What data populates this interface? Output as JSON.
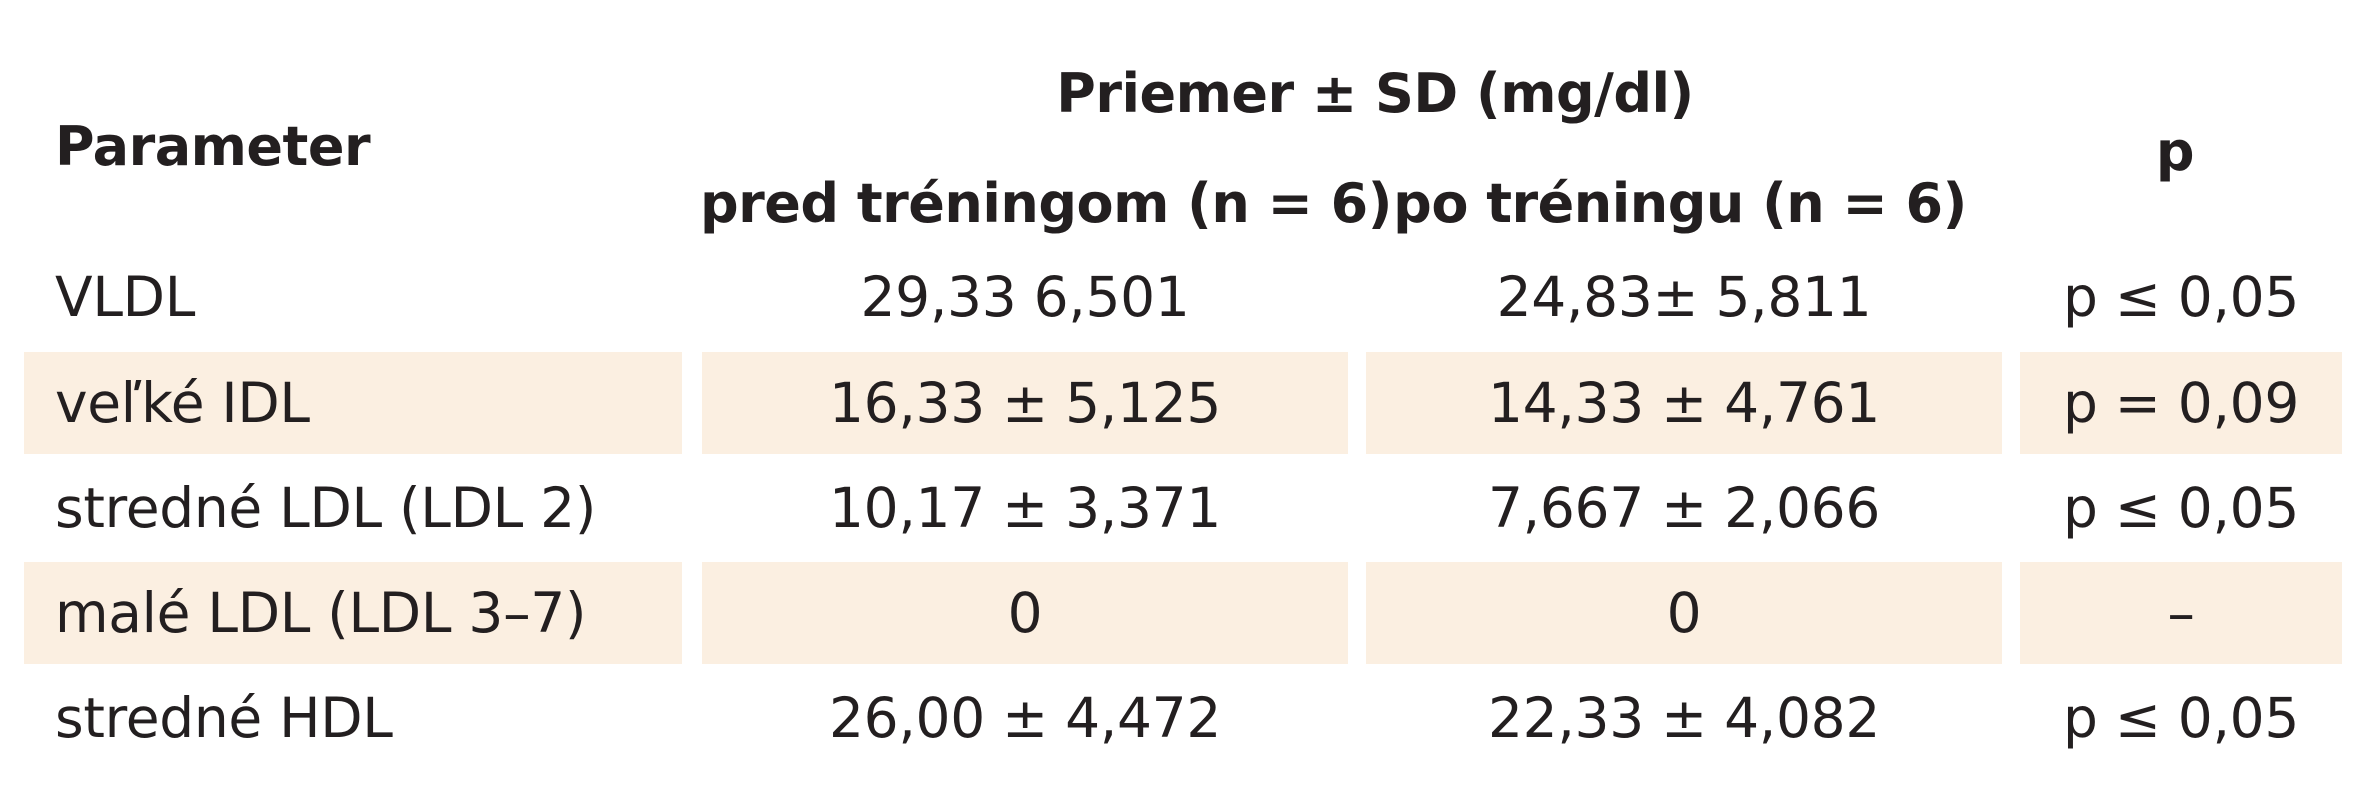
{
  "table": {
    "header": {
      "parameter": "Parameter",
      "group": "Priemer ± SD (mg/dl)",
      "before": "pred tréningom (n = 6)",
      "after": "po tréningu (n = 6)",
      "p": "p"
    },
    "rows": [
      {
        "parameter": "VLDL",
        "before": "29,33 6,501",
        "after": "24,83± 5,811",
        "p": "p ≤ 0,05"
      },
      {
        "parameter": "veľké IDL",
        "before": "16,33 ± 5,125",
        "after": "14,33 ± 4,761",
        "p": "p = 0,09"
      },
      {
        "parameter": "stredné LDL (LDL 2)",
        "before": "10,17 ± 3,371",
        "after": "7,667 ± 2,066",
        "p": "p ≤ 0,05"
      },
      {
        "parameter": "malé LDL (LDL 3–7)",
        "before": "0",
        "after": "0",
        "p": "–"
      },
      {
        "parameter": "stredné HDL",
        "before": "26,00 ± 4,472",
        "after": "22,33 ± 4,082",
        "p": "p ≤ 0,05"
      }
    ],
    "colors": {
      "stripe": "#fbefe1",
      "text": "#231f20"
    }
  }
}
